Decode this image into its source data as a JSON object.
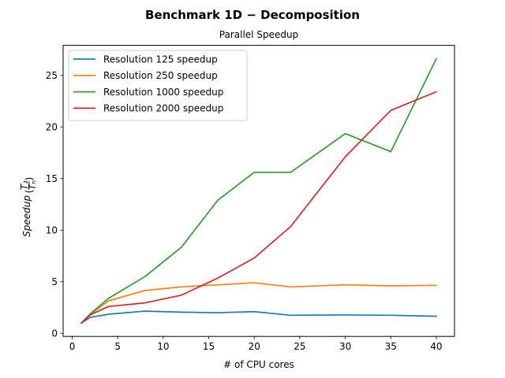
{
  "figure": {
    "suptitle": "Benchmark 1D − Decomposition"
  },
  "chart_data": {
    "type": "line",
    "title": "Parallel Speedup",
    "xlabel": "# of CPU cores",
    "ylabel": "Speedup",
    "ylabel_fraction": {
      "numerator": "T₁",
      "denominator": "Tₙ"
    },
    "xlim": [
      -1,
      42
    ],
    "ylim": [
      -0.3,
      27.9
    ],
    "xticks": [
      0,
      5,
      10,
      15,
      20,
      25,
      30,
      35,
      40
    ],
    "yticks": [
      0,
      5,
      10,
      15,
      20,
      25
    ],
    "grid": false,
    "legend_position": "top-left",
    "series": [
      {
        "name": "Resolution 125 speedup",
        "color": "#1f77b4",
        "x": [
          1,
          2,
          4,
          8,
          12,
          16,
          20,
          24,
          30,
          35,
          40
        ],
        "y": [
          1.0,
          1.55,
          1.85,
          2.15,
          2.05,
          2.0,
          2.1,
          1.75,
          1.78,
          1.75,
          1.65
        ]
      },
      {
        "name": "Resolution 250 speedup",
        "color": "#ff7f0e",
        "x": [
          1,
          2,
          4,
          8,
          12,
          16,
          20,
          24,
          30,
          35,
          40
        ],
        "y": [
          1.0,
          1.85,
          3.15,
          4.15,
          4.5,
          4.7,
          4.9,
          4.5,
          4.7,
          4.6,
          4.65
        ]
      },
      {
        "name": "Resolution 1000 speedup",
        "color": "#2ca02c",
        "x": [
          1,
          2,
          4,
          8,
          12,
          16,
          20,
          24,
          30,
          35,
          40
        ],
        "y": [
          1.0,
          1.9,
          3.4,
          5.5,
          8.35,
          12.9,
          15.6,
          15.6,
          19.35,
          17.6,
          26.6
        ]
      },
      {
        "name": "Resolution 2000 speedup",
        "color": "#d62728",
        "x": [
          1,
          2,
          4,
          8,
          12,
          16,
          20,
          24,
          30,
          35,
          40
        ],
        "y": [
          1.0,
          1.8,
          2.6,
          2.95,
          3.7,
          5.35,
          7.3,
          10.35,
          17.1,
          21.6,
          23.4
        ]
      }
    ]
  }
}
